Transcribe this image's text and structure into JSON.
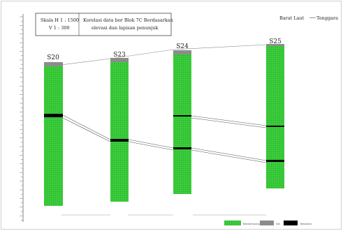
{
  "scale_box": {
    "h_scale": "Skala  H 1 : 1500",
    "v_scale": "V 1 : 300",
    "title_line1": "Korelasi data bor Blok 7C Berdasarkan",
    "title_line2": "elevasi dan lapisan penunjuk"
  },
  "direction": {
    "left": "Barat Laut",
    "right": "Tenggara"
  },
  "wells": [
    {
      "name": "S20"
    },
    {
      "name": "S23"
    },
    {
      "name": "S24"
    },
    {
      "name": "S25"
    }
  ],
  "legend": {
    "items": [
      {
        "label": "Batulempung",
        "color": "#3bcc3b"
      },
      {
        "label": "Soil",
        "color": "#8c8c8c"
      },
      {
        "label": "Batubara",
        "color": "#000000"
      }
    ]
  },
  "colors": {
    "clay": "#3bcc3b",
    "soil": "#8c8c8c",
    "coal": "#000000",
    "line": "#555555"
  }
}
